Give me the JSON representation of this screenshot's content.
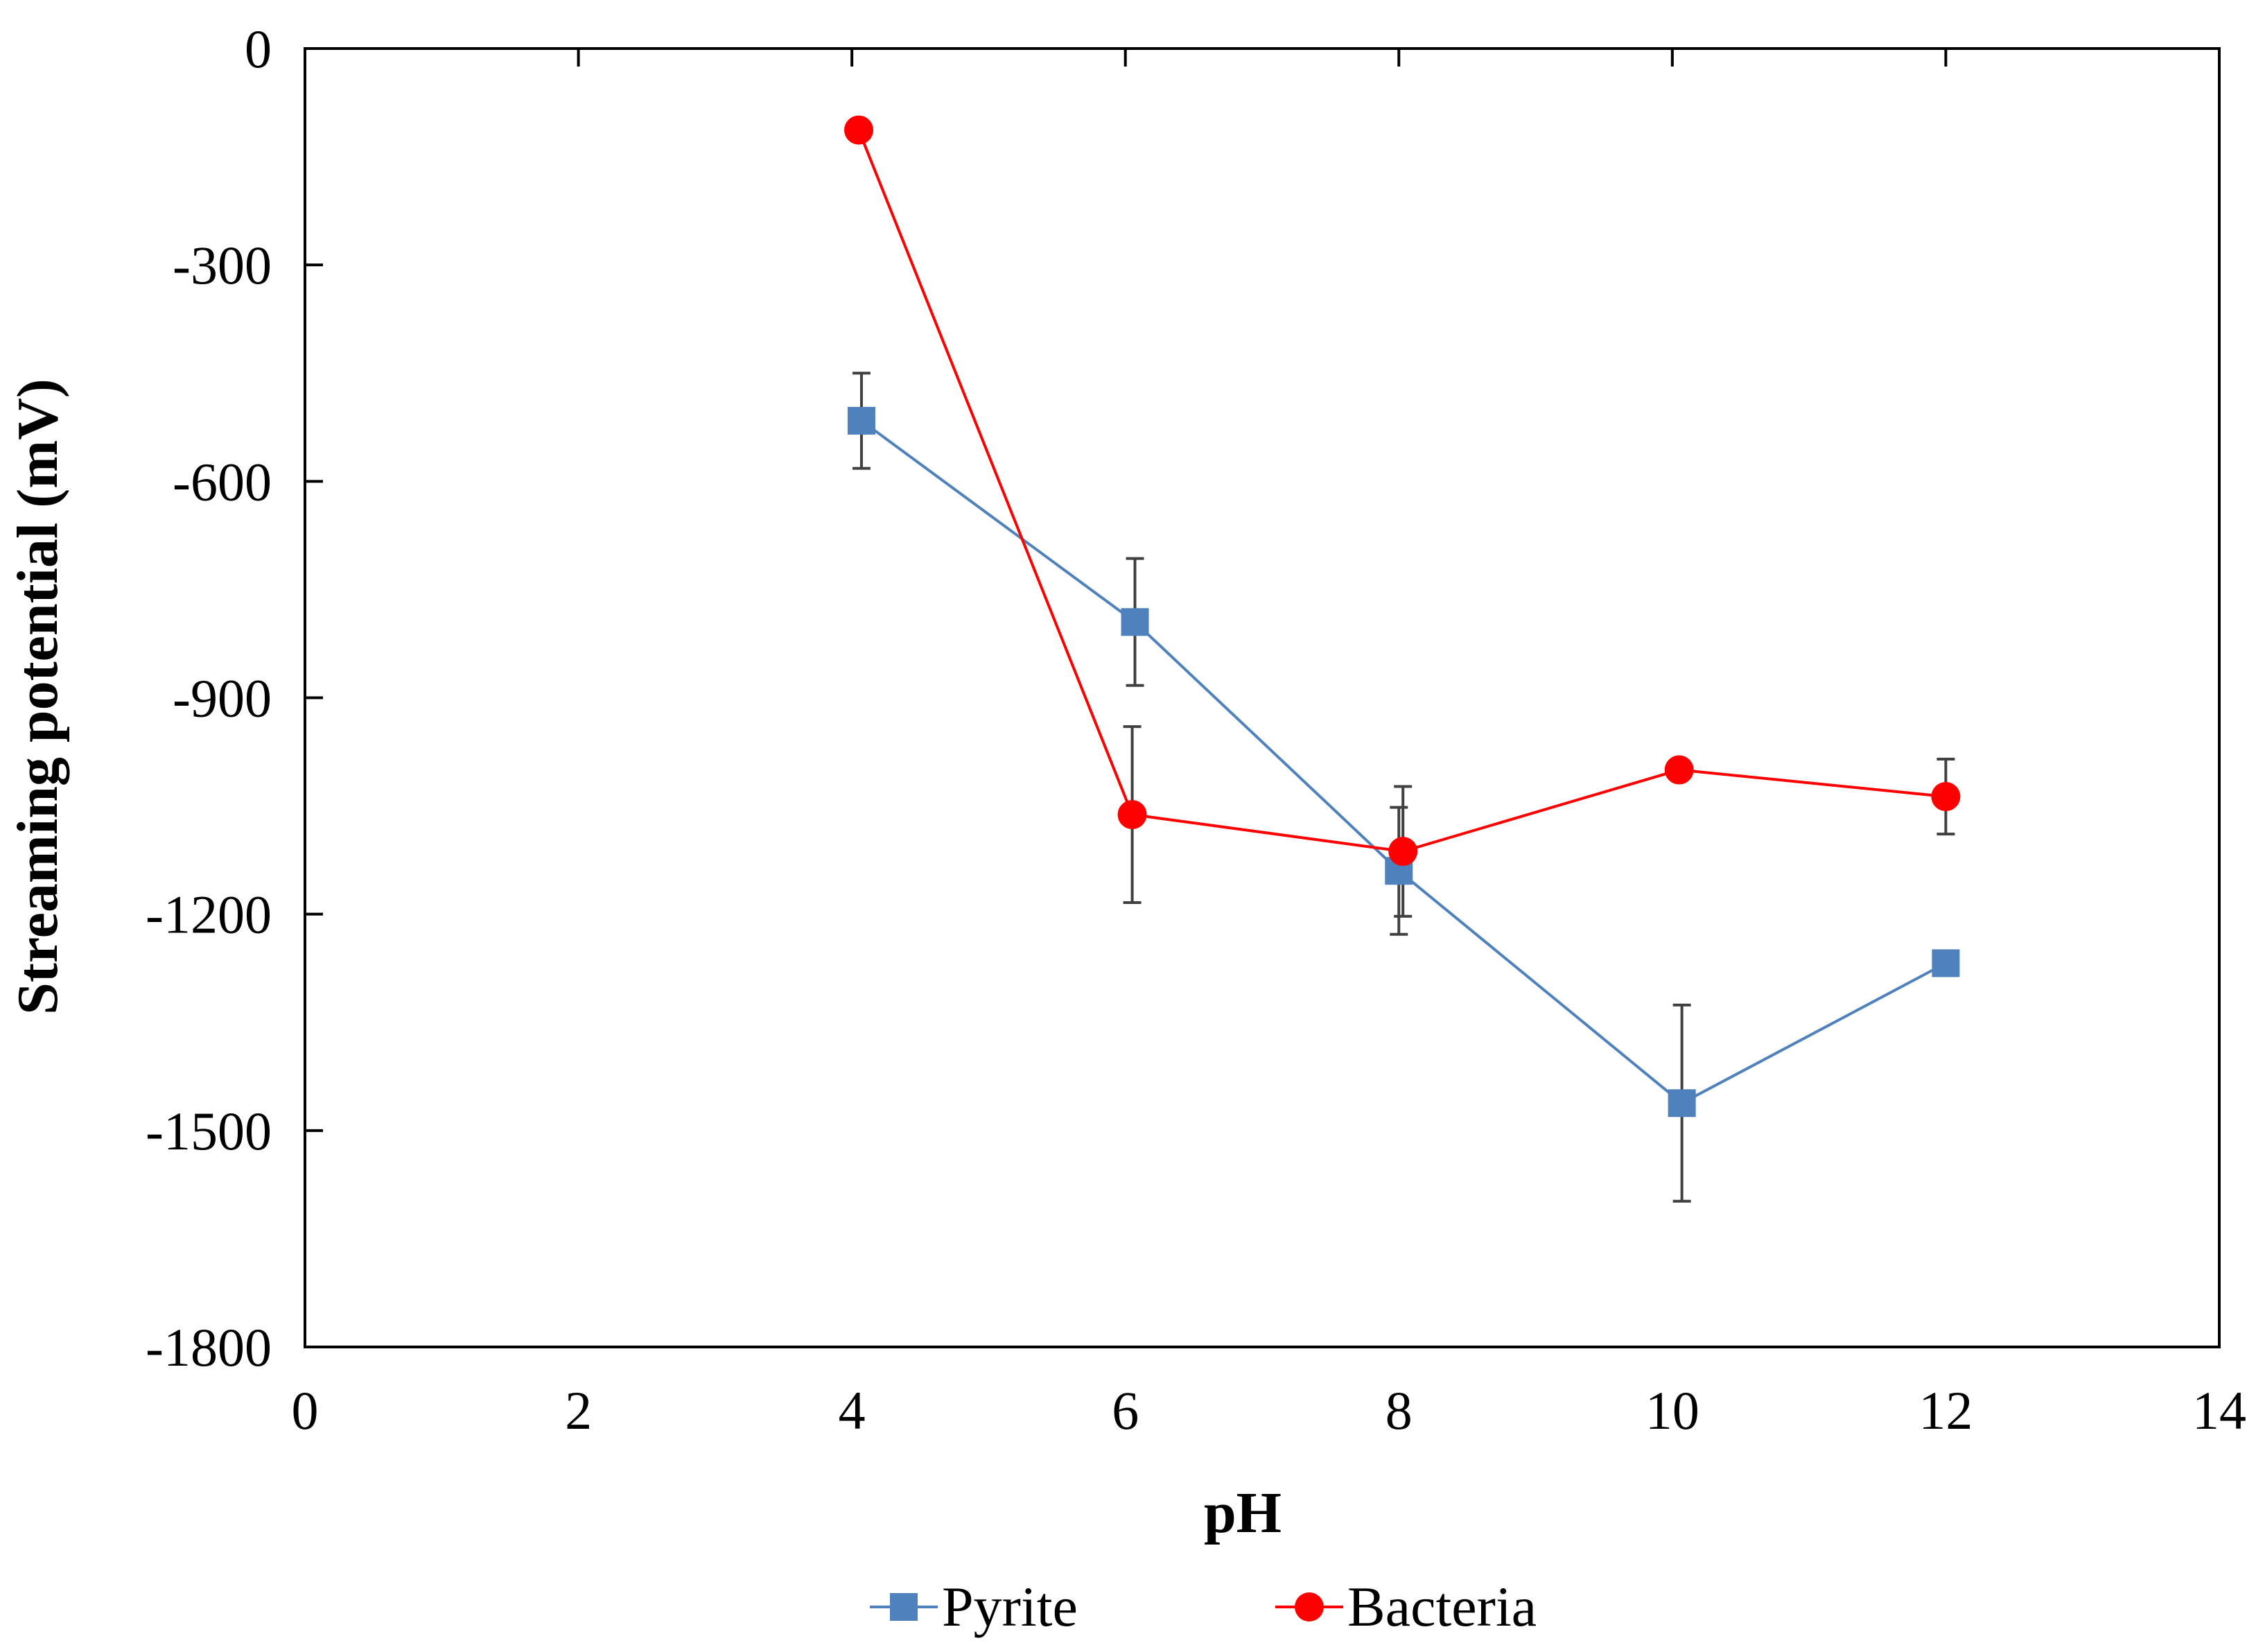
{
  "chart_data": {
    "type": "line",
    "title": "",
    "xlabel": "pH",
    "ylabel": "Streaming potential (mV)",
    "xlim": [
      0,
      14
    ],
    "ylim": [
      -1800,
      0
    ],
    "x_ticks": [
      0,
      2,
      4,
      6,
      8,
      10,
      12,
      14
    ],
    "y_ticks": [
      0,
      -300,
      -600,
      -900,
      -1200,
      -1500,
      -1800
    ],
    "x_tick_labels": [
      "0",
      "2",
      "4",
      "6",
      "8",
      "10",
      "12",
      "14"
    ],
    "y_tick_labels": [
      "0",
      "-300",
      "-600",
      "-900",
      "-1200",
      "-1500",
      "-1800"
    ],
    "grid": false,
    "legend_position": "bottom",
    "series": [
      {
        "name": "Pyrite",
        "color": "#4f81bd",
        "marker": "square",
        "x": [
          4.07,
          6.07,
          8.0,
          10.07,
          12.0
        ],
        "y": [
          -516,
          -795,
          -1140,
          -1462,
          -1268
        ],
        "error": [
          66,
          88,
          88,
          136,
          0
        ]
      },
      {
        "name": "Bacteria",
        "color": "#ff0000",
        "marker": "circle",
        "x": [
          4.05,
          6.05,
          8.03,
          10.05,
          12.0
        ],
        "y": [
          -113,
          -1062,
          -1113,
          -1000,
          -1037
        ],
        "error": [
          0,
          122,
          90,
          0,
          52
        ]
      }
    ]
  }
}
